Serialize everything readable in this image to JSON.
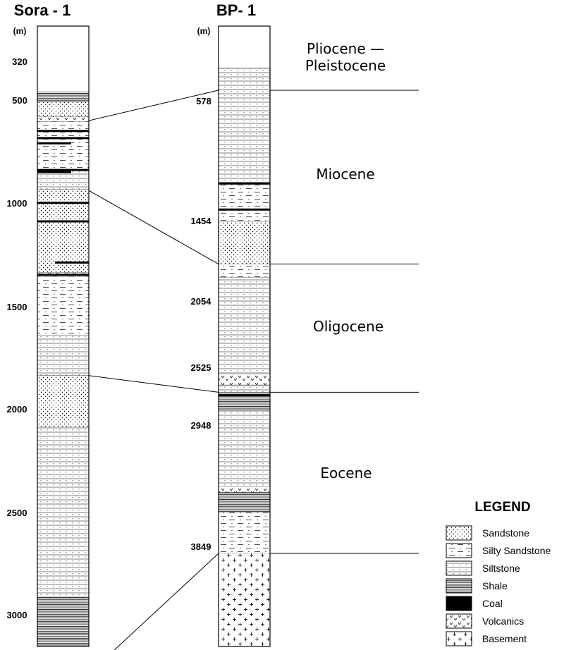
{
  "wells": [
    {
      "name": "Sora - 1",
      "unit": "(m)",
      "depth_labels": [
        "320",
        "500",
        "1000",
        "1500",
        "2000",
        "2500",
        "3000"
      ],
      "intervals": [
        {
          "top": 30,
          "base": 320,
          "lith": "blank"
        },
        {
          "top": 320,
          "base": 370,
          "lith": "shale"
        },
        {
          "top": 370,
          "base": 440,
          "lith": "sandstone"
        },
        {
          "top": 440,
          "base": 465,
          "lith": "volcanics"
        },
        {
          "top": 465,
          "base": 700,
          "lith": "silty_sandstone"
        },
        {
          "top": 700,
          "base": 795,
          "lith": "siltstone"
        },
        {
          "top": 795,
          "base": 1200,
          "lith": "sandstone"
        },
        {
          "top": 1200,
          "base": 1220,
          "lith": "volcanics"
        },
        {
          "top": 1220,
          "base": 1505,
          "lith": "silty_sandstone"
        },
        {
          "top": 1505,
          "base": 1700,
          "lith": "siltstone"
        },
        {
          "top": 1700,
          "base": 1950,
          "lith": "sandstone"
        },
        {
          "top": 1950,
          "base": 2780,
          "lith": "siltstone"
        },
        {
          "top": 2780,
          "base": 3150,
          "lith": "shale"
        }
      ],
      "coal_beds": [
        510,
        545,
        570,
        700,
        710,
        860,
        950,
        1150,
        1210
      ]
    },
    {
      "name": "BP- 1",
      "unit": "(m)",
      "depth_labels": [
        "578",
        "1454",
        "2054",
        "2525",
        "2948",
        "3849"
      ],
      "intervals": [
        {
          "top": 0,
          "base": 380,
          "lith": "blank"
        },
        {
          "top": 380,
          "base": 1260,
          "lith": "siltstone"
        },
        {
          "top": 1260,
          "base": 1440,
          "lith": "silty_sandstone"
        },
        {
          "top": 1440,
          "base": 1540,
          "lith": "silty_sandstone"
        },
        {
          "top": 1540,
          "base": 1880,
          "lith": "sandstone"
        },
        {
          "top": 1880,
          "base": 1990,
          "lith": "silty_sandstone"
        },
        {
          "top": 1990,
          "base": 2630,
          "lith": "siltstone"
        },
        {
          "top": 2630,
          "base": 2720,
          "lith": "volcanics"
        },
        {
          "top": 2720,
          "base": 2780,
          "lith": "siltstone"
        },
        {
          "top": 2780,
          "base": 2930,
          "lith": "shale"
        },
        {
          "top": 2930,
          "base": 3470,
          "lith": "siltstone"
        },
        {
          "top": 3470,
          "base": 3510,
          "lith": "volcanics"
        },
        {
          "top": 3510,
          "base": 3650,
          "lith": "shale"
        },
        {
          "top": 3650,
          "base": 4040,
          "lith": "silty_sandstone"
        },
        {
          "top": 4040,
          "base": 4700,
          "lith": "basement"
        }
      ],
      "coal_beds": [
        1250,
        1440,
        2805
      ]
    }
  ],
  "epochs": [
    {
      "name": "Pliocene —"
    },
    {
      "name": "Pleistocene"
    },
    {
      "name": "Miocene"
    },
    {
      "name": "Oligocene"
    },
    {
      "name": "Eocene"
    }
  ],
  "correlations": [
    {
      "from_depth": 460,
      "to_depth": 578
    },
    {
      "from_depth": 800,
      "to_depth": 1880
    },
    {
      "from_depth": 1700,
      "to_depth": 2780
    },
    {
      "from_depth": 3150,
      "to_depth": 4040
    }
  ],
  "legend": {
    "title": "LEGEND",
    "items": [
      {
        "key": "sandstone",
        "label": "Sandstone"
      },
      {
        "key": "silty_sandstone",
        "label": "Silty Sandstone"
      },
      {
        "key": "siltstone",
        "label": "Siltstone"
      },
      {
        "key": "shale",
        "label": "Shale"
      },
      {
        "key": "coal",
        "label": "Coal"
      },
      {
        "key": "volcanics",
        "label": "Volcanics"
      },
      {
        "key": "basement",
        "label": "Basement"
      }
    ]
  }
}
